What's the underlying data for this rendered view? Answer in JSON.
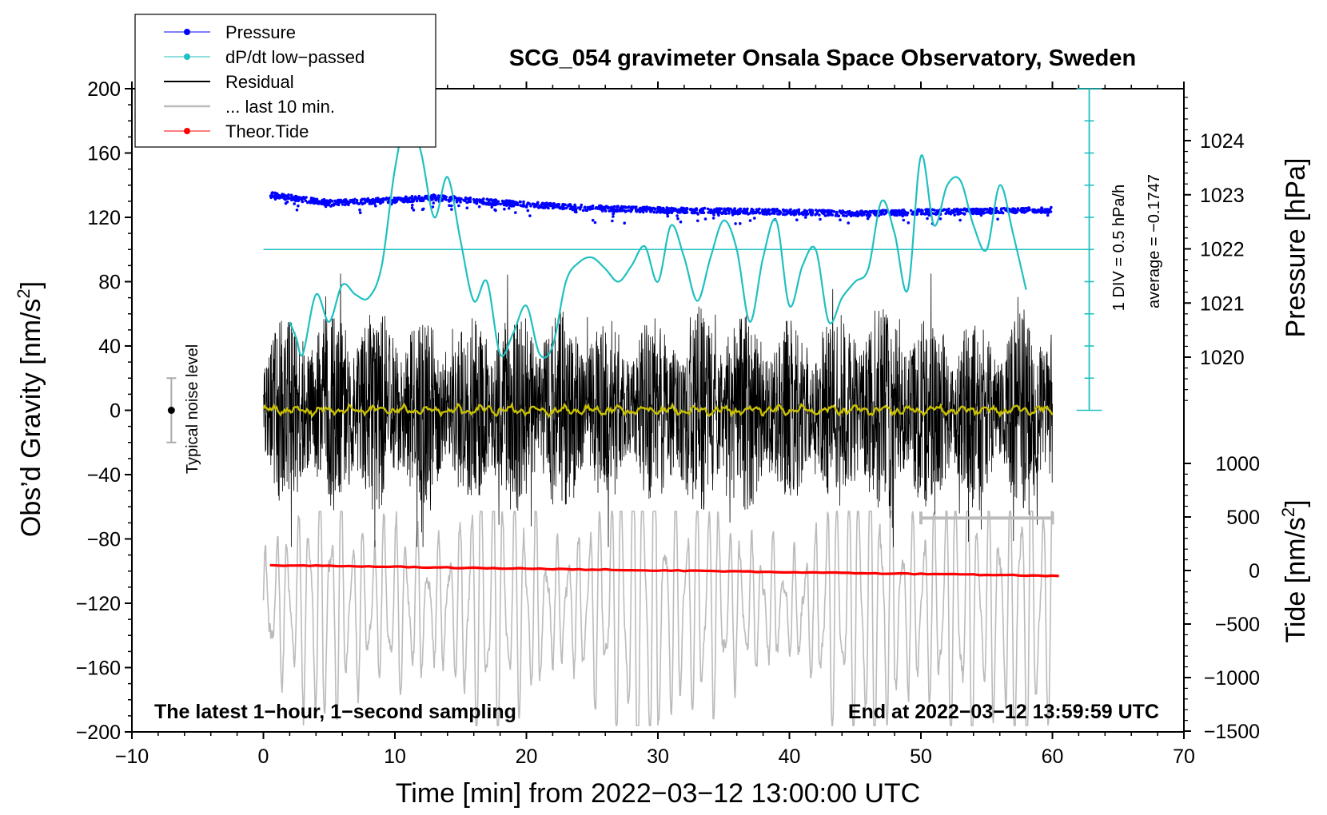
{
  "colors": {
    "pressure": "#0000ff",
    "dpdt": "#20c0c0",
    "residual": "#000000",
    "last10": "#bbbbbb",
    "tide": "#ff0000",
    "mean_residual": "#c8c000"
  },
  "chart_data": {
    "type": "line",
    "title": "SCG_054 gravimeter Onsala Space Observatory, Sweden",
    "xlabel": "Time [min] from 2022−03−12 13:00:00 UTC",
    "ylabel_prefix": "Obs’d Gravity [nm/s",
    "ylabel_sup": "2",
    "ylabel_suffix": "]",
    "pressure_axis_label": "Pressure [hPa]",
    "tide_axis_label_prefix": "Tide [nm/s",
    "tide_axis_label_sup": "2",
    "tide_axis_label_suffix": "]",
    "xlim": [
      -10,
      70
    ],
    "x_ticks": [
      "−10",
      "0",
      "10",
      "20",
      "30",
      "40",
      "50",
      "60",
      "70"
    ],
    "gravity_ylim": [
      -200,
      200
    ],
    "gravity_ticks": [
      "200",
      "160",
      "120",
      "80",
      "40",
      "0",
      "−40",
      "−80",
      "−120",
      "−160",
      "−200"
    ],
    "pressure_ylim": [
      1019.0,
      1025.0
    ],
    "pressure_ticks": [
      "1024",
      "1023",
      "1022",
      "1021",
      "1020"
    ],
    "tide_ylim": [
      -1500,
      1500
    ],
    "tide_ticks": [
      "1000",
      "500",
      "0",
      "−500",
      "−1000",
      "−1500"
    ],
    "legend": [
      "Pressure",
      "dP/dt low−passed",
      "Residual",
      "... last 10 min.",
      "Theor.Tide"
    ],
    "bottom_left_note": "The latest 1−hour, 1−second sampling",
    "bottom_right_note": "End at 2022−03−12 13:59:59 UTC",
    "noise_label": "Typical noise level",
    "noise_level": {
      "x": -7,
      "center": 0,
      "halfwidth": 20
    },
    "dpdt_scale_label": "1 DIV = 0.5 hPa/h",
    "dpdt_average_label": "average = −0.1747",
    "dpdt_scale": {
      "x": 62.8,
      "zero_gravity": 100,
      "div_gravity": 20,
      "n_div": 10
    },
    "last10_range": [
      50,
      60
    ],
    "series": [
      {
        "name": "Pressure",
        "axis": "pressure",
        "x": [
          0.5,
          5,
          10,
          13,
          18,
          25,
          30,
          35,
          40,
          45,
          50,
          55,
          60
        ],
        "y": [
          1023.0,
          1022.85,
          1022.9,
          1022.95,
          1022.85,
          1022.75,
          1022.72,
          1022.7,
          1022.68,
          1022.65,
          1022.68,
          1022.7,
          1022.72
        ]
      },
      {
        "name": "dP/dt low−passed",
        "axis": "gravity",
        "x": [
          2,
          2.5,
          3,
          4,
          5,
          6,
          7,
          8,
          9,
          10,
          11,
          12,
          13,
          14,
          15,
          16,
          17,
          18,
          19,
          20,
          21,
          22,
          23,
          24,
          25,
          26,
          27,
          28,
          29,
          30,
          31,
          32,
          33,
          34,
          35,
          36,
          37,
          38,
          39,
          40,
          41,
          42,
          43,
          44,
          45,
          46,
          47,
          48,
          49,
          50,
          51,
          52,
          53,
          54,
          55,
          56,
          57,
          58
        ],
        "y": [
          55,
          45,
          35,
          72,
          55,
          78,
          72,
          70,
          90,
          150,
          185,
          160,
          120,
          145,
          105,
          68,
          80,
          35,
          48,
          65,
          35,
          40,
          80,
          92,
          95,
          88,
          80,
          90,
          102,
          80,
          115,
          95,
          68,
          95,
          118,
          100,
          55,
          95,
          118,
          65,
          90,
          100,
          55,
          70,
          80,
          88,
          130,
          110,
          75,
          158,
          115,
          140,
          143,
          115,
          100,
          140,
          110,
          75
        ]
      },
      {
        "name": "Theor.Tide",
        "axis": "tide",
        "x": [
          0.5,
          60.5
        ],
        "y": [
          50,
          -50
        ]
      }
    ],
    "residual_envelope": {
      "mean": 0,
      "typical_amplitude": 45,
      "max_amplitude": 85
    }
  }
}
